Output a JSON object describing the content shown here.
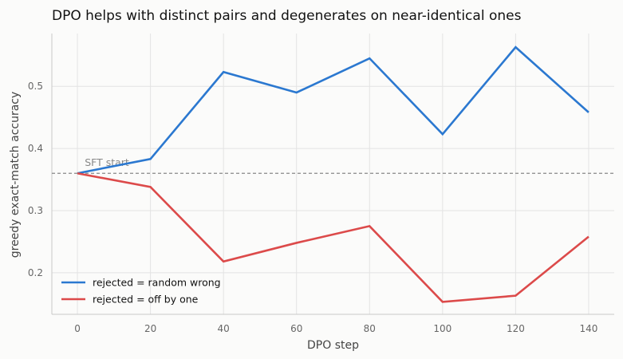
{
  "chart_data": {
    "type": "line",
    "title": "DPO helps with distinct pairs and degenerates on near-identical ones",
    "xlabel": "DPO step",
    "ylabel": "greedy exact-match accuracy",
    "x": [
      0,
      20,
      40,
      60,
      80,
      100,
      120,
      140
    ],
    "xticks": [
      0,
      20,
      40,
      60,
      80,
      100,
      120,
      140
    ],
    "yticks": [
      0.2,
      0.3,
      0.4,
      0.5
    ],
    "xlim": [
      -7,
      147
    ],
    "ylim": [
      0.133,
      0.585
    ],
    "grid": true,
    "legend_position": "lower-left",
    "series": [
      {
        "name": "rejected = random wrong",
        "color": "#2b78d0",
        "values": [
          0.36,
          0.383,
          0.523,
          0.49,
          0.545,
          0.423,
          0.563,
          0.458
        ]
      },
      {
        "name": "rejected = off by one",
        "color": "#dc4a4a",
        "values": [
          0.36,
          0.338,
          0.218,
          0.248,
          0.275,
          0.153,
          0.163,
          0.258
        ]
      }
    ],
    "reference_line": {
      "y": 0.36,
      "label": "SFT start",
      "color": "#888888",
      "style": "dashed"
    }
  }
}
